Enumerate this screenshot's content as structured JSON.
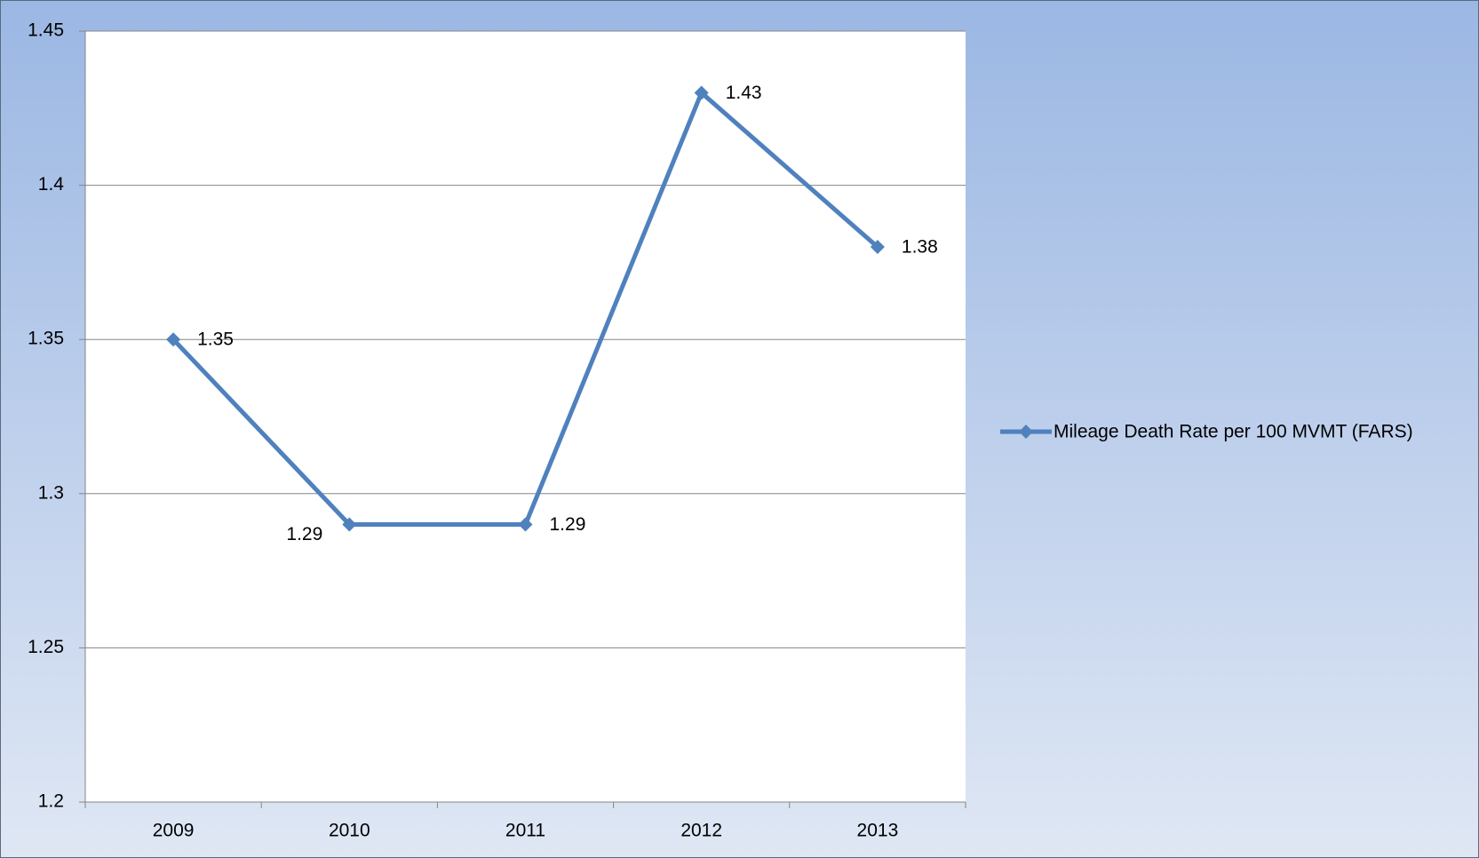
{
  "chart_data": {
    "type": "line",
    "categories": [
      "2009",
      "2010",
      "2011",
      "2012",
      "2013"
    ],
    "series": [
      {
        "name": "Mileage Death Rate per 100 MVMT (FARS)",
        "color": "#4f81bd",
        "values": [
          1.35,
          1.29,
          1.29,
          1.43,
          1.38
        ]
      }
    ],
    "ylim": [
      1.2,
      1.45
    ],
    "yticks": [
      1.2,
      1.25,
      1.3,
      1.35,
      1.4,
      1.45
    ],
    "grid": true,
    "legend": "right"
  }
}
